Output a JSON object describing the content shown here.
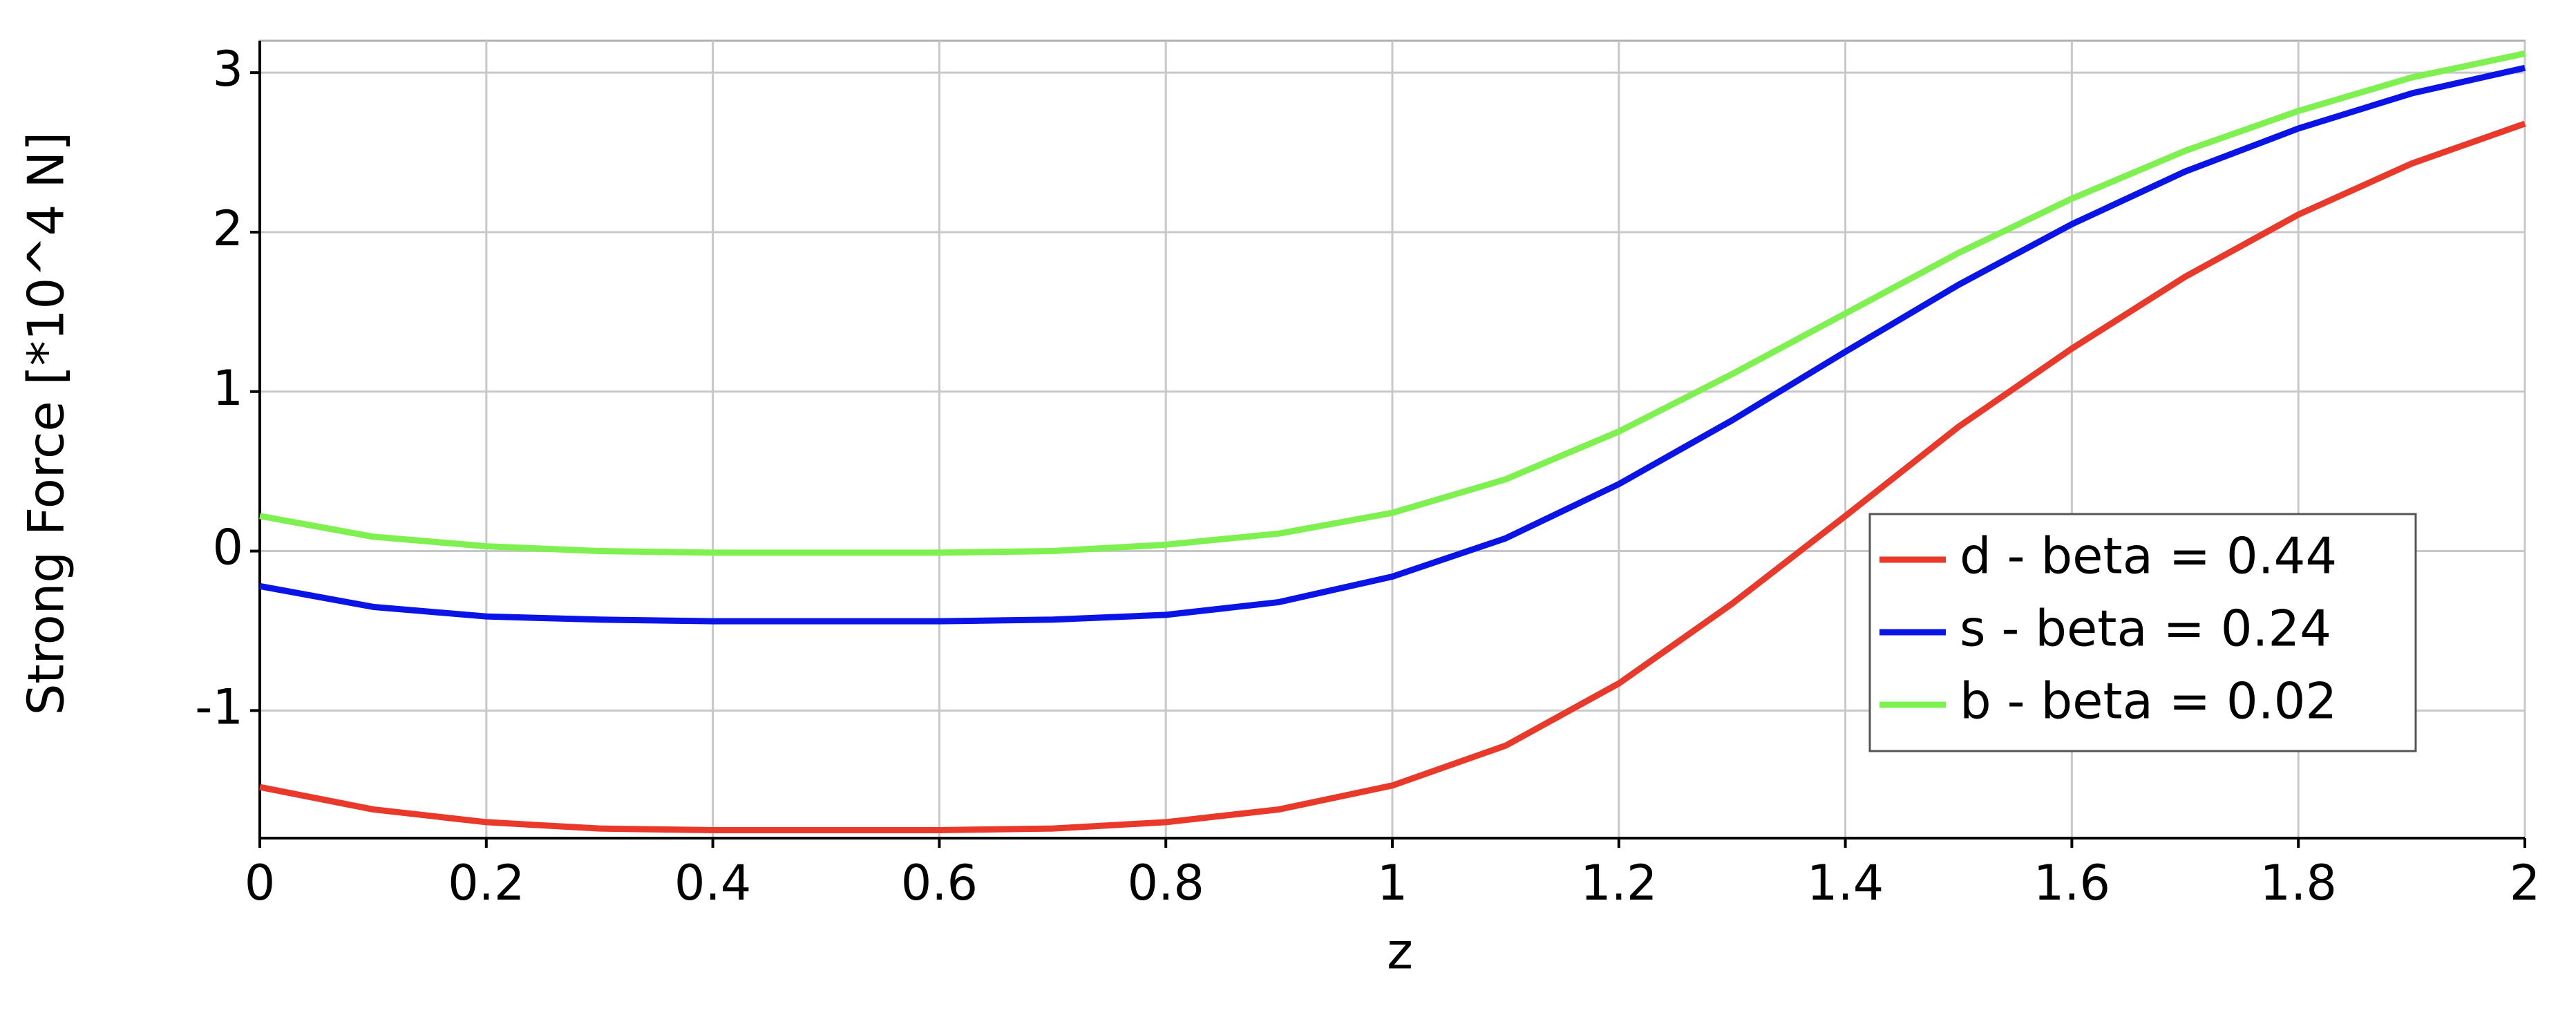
{
  "chart_data": {
    "type": "line",
    "x_label": "z",
    "y_label": "Strong Force [*10^4 N]",
    "x": [
      0,
      0.1,
      0.2,
      0.3,
      0.4,
      0.5,
      0.6,
      0.7,
      0.8,
      0.9,
      1.0,
      1.1,
      1.2,
      1.3,
      1.4,
      1.5,
      1.6,
      1.7,
      1.8,
      1.9,
      2.0
    ],
    "series": [
      {
        "name": "d - beta = 0.44",
        "color": "#e8392a",
        "values": [
          -1.48,
          -1.62,
          -1.7,
          -1.74,
          -1.75,
          -1.75,
          -1.75,
          -1.74,
          -1.7,
          -1.62,
          -1.47,
          -1.22,
          -0.83,
          -0.33,
          0.22,
          0.78,
          1.27,
          1.72,
          2.11,
          2.43,
          2.68
        ]
      },
      {
        "name": "s - beta = 0.24",
        "color": "#0a14e6",
        "values": [
          -0.22,
          -0.35,
          -0.41,
          -0.43,
          -0.44,
          -0.44,
          -0.44,
          -0.43,
          -0.4,
          -0.32,
          -0.16,
          0.08,
          0.42,
          0.82,
          1.25,
          1.67,
          2.05,
          2.38,
          2.65,
          2.87,
          3.03
        ]
      },
      {
        "name": "b - beta = 0.02",
        "color": "#7ef050",
        "values": [
          0.22,
          0.09,
          0.03,
          0.0,
          -0.01,
          -0.01,
          -0.01,
          0.0,
          0.04,
          0.11,
          0.24,
          0.45,
          0.75,
          1.11,
          1.49,
          1.87,
          2.21,
          2.51,
          2.76,
          2.97,
          3.12
        ]
      }
    ],
    "xlim": [
      0,
      2
    ],
    "ylim": [
      -1.8,
      3.2
    ],
    "xticks": [
      0,
      0.2,
      0.4,
      0.6,
      0.8,
      1,
      1.2,
      1.4,
      1.6,
      1.8,
      2
    ],
    "yticks": [
      -1,
      0,
      1,
      2,
      3
    ],
    "grid": true,
    "legend": "lower right"
  }
}
